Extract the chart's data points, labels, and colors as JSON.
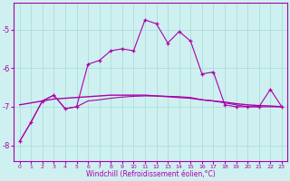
{
  "xlabel": "Windchill (Refroidissement éolien,°C)",
  "background_color": "#cff0f0",
  "grid_color": "#aadddd",
  "line_color": "#aa00aa",
  "xlim": [
    -0.5,
    23.5
  ],
  "ylim": [
    -8.4,
    -4.3
  ],
  "yticks": [
    -8,
    -7,
    -6,
    -5
  ],
  "xticks": [
    0,
    1,
    2,
    3,
    4,
    5,
    6,
    7,
    8,
    9,
    10,
    11,
    12,
    13,
    14,
    15,
    16,
    17,
    18,
    19,
    20,
    21,
    22,
    23
  ],
  "series1_x": [
    0,
    1,
    2,
    3,
    4,
    5,
    6,
    7,
    8,
    9,
    10,
    11,
    12,
    13,
    14,
    15,
    16,
    17,
    18,
    19,
    20,
    21,
    22,
    23
  ],
  "series1_y": [
    -7.9,
    -7.4,
    -6.85,
    -6.7,
    -7.05,
    -7.0,
    -5.9,
    -5.8,
    -5.55,
    -5.5,
    -5.55,
    -4.75,
    -4.85,
    -5.35,
    -5.05,
    -5.3,
    -6.15,
    -6.1,
    -6.95,
    -7.0,
    -7.0,
    -7.0,
    -6.55,
    -7.0
  ],
  "series2_x": [
    0,
    1,
    2,
    3,
    4,
    5,
    6,
    7,
    8,
    9,
    10,
    11,
    12,
    13,
    14,
    15,
    16,
    17,
    18,
    19,
    20,
    21,
    22,
    23
  ],
  "series2_y": [
    -6.95,
    -6.9,
    -6.85,
    -6.8,
    -6.78,
    -6.76,
    -6.74,
    -6.72,
    -6.7,
    -6.7,
    -6.7,
    -6.7,
    -6.72,
    -6.74,
    -6.76,
    -6.78,
    -6.82,
    -6.85,
    -6.88,
    -6.92,
    -6.95,
    -6.97,
    -6.98,
    -7.0
  ],
  "series3_x": [
    0,
    1,
    2,
    3,
    4,
    5,
    6,
    7,
    8,
    9,
    10,
    11,
    12,
    13,
    14,
    15,
    16,
    17,
    18,
    19,
    20,
    21,
    22,
    23
  ],
  "series3_y": [
    -7.9,
    -7.4,
    -6.85,
    -6.7,
    -7.05,
    -7.0,
    -6.85,
    -6.82,
    -6.78,
    -6.75,
    -6.73,
    -6.72,
    -6.72,
    -6.73,
    -6.74,
    -6.76,
    -6.82,
    -6.85,
    -6.9,
    -6.95,
    -7.0,
    -7.0,
    -7.0,
    -7.0
  ]
}
